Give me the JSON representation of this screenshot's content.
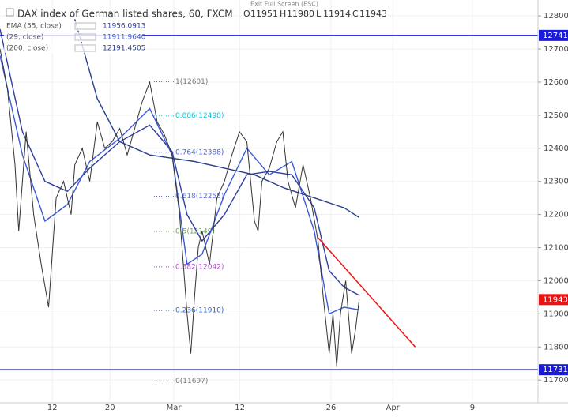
{
  "chart_data": {
    "type": "line",
    "notice": "Exit Full Screen (ESC)",
    "title": "DAX index of German listed shares, 60, FXCM",
    "ohlc": [
      {
        "label": "O",
        "value": 11951
      },
      {
        "label": "H",
        "value": 11980
      },
      {
        "label": "L",
        "value": 11914
      },
      {
        "label": "C",
        "value": 11943
      }
    ],
    "xlim": [
      0,
      51.36
    ],
    "ylim": [
      11636,
      12848
    ],
    "xticks": [
      {
        "value": 5,
        "label": "12"
      },
      {
        "value": 10.5,
        "label": "20"
      },
      {
        "value": 16.6,
        "label": "Mar"
      },
      {
        "value": 22.9,
        "label": "12"
      },
      {
        "value": 31.6,
        "label": "26"
      },
      {
        "value": 37.5,
        "label": "Apr"
      },
      {
        "value": 45.1,
        "label": "9"
      }
    ],
    "yticks": [
      11700,
      11800,
      11900,
      12000,
      12100,
      12200,
      12300,
      12400,
      12500,
      12600,
      12700,
      12800
    ],
    "price": {
      "color": "#333333",
      "x": [
        0,
        0.71,
        1.43,
        1.79,
        2.5,
        3.21,
        3.93,
        4.64,
        5.36,
        6.07,
        6.79,
        7.14,
        7.86,
        8.57,
        9.29,
        10,
        10.71,
        11.43,
        12.14,
        12.86,
        13.57,
        14.29,
        15,
        15.71,
        16.43,
        17.14,
        17.86,
        18.21,
        18.57,
        18.93,
        19.29,
        20,
        20.71,
        21.43,
        22.14,
        22.86,
        23.57,
        24.29,
        24.64,
        25,
        25.71,
        26.43,
        27,
        27.5,
        28.21,
        28.93,
        29.64,
        30.36,
        30.86,
        31.43,
        31.79,
        32.14,
        32.5,
        33,
        33.57,
        33.93,
        34.29
      ],
      "values": [
        12700,
        12580,
        12350,
        12150,
        12450,
        12200,
        12050,
        11920,
        12250,
        12300,
        12200,
        12350,
        12400,
        12300,
        12480,
        12400,
        12420,
        12460,
        12380,
        12460,
        12540,
        12600,
        12480,
        12440,
        12380,
        12200,
        11900,
        11780,
        11950,
        12100,
        12150,
        12050,
        12250,
        12300,
        12380,
        12450,
        12420,
        12180,
        12150,
        12300,
        12340,
        12420,
        12450,
        12300,
        12220,
        12350,
        12250,
        12120,
        11950,
        11780,
        11900,
        11740,
        11900,
        12000,
        11780,
        11850,
        11943
      ]
    },
    "series": [
      {
        "name": "EMA (55, close)",
        "legend_value": "11956.0913",
        "color": "#2f3f9e",
        "x": [
          0,
          2.14,
          4.29,
          6.43,
          8.57,
          11.43,
          14.29,
          16.43,
          17.86,
          19.29,
          21.43,
          23.57,
          25.71,
          27.86,
          30,
          31.43,
          32.86,
          34.29
        ],
        "values": [
          12760,
          12450,
          12300,
          12270,
          12340,
          12420,
          12470,
          12390,
          12200,
          12120,
          12200,
          12320,
          12330,
          12320,
          12220,
          12030,
          11980,
          11956
        ]
      },
      {
        "name": "(29, close)",
        "legend_value": "11911.9640",
        "color": "#3b5bd6",
        "x": [
          0,
          2.14,
          4.29,
          6.43,
          8.57,
          11.43,
          14.29,
          16.43,
          17.86,
          19.29,
          21.43,
          23.57,
          25.71,
          27.86,
          30,
          31.43,
          32.86,
          34.29
        ],
        "values": [
          12680,
          12380,
          12180,
          12230,
          12360,
          12430,
          12520,
          12380,
          12050,
          12080,
          12260,
          12400,
          12320,
          12360,
          12150,
          11900,
          11920,
          11912
        ]
      },
      {
        "name": "(200, close)",
        "legend_value": "12191.4505",
        "color": "#27408b",
        "x": [
          7.14,
          9.29,
          11.43,
          14.29,
          16.43,
          18.57,
          21.43,
          24.29,
          27.14,
          30,
          32.86,
          34.29
        ],
        "values": [
          12790,
          12550,
          12420,
          12380,
          12370,
          12360,
          12340,
          12320,
          12280,
          12250,
          12220,
          12191
        ]
      }
    ],
    "fib": [
      {
        "label": "1(12601)",
        "price": 12601,
        "color": "#777777"
      },
      {
        "label": "0.886(12498)",
        "price": 12498,
        "color": "#00c8e0"
      },
      {
        "label": "0.764(12388)",
        "price": 12388,
        "color": "#4a5fd0"
      },
      {
        "label": "0.618(12255)",
        "price": 12255,
        "color": "#5a6ee0"
      },
      {
        "label": "0.5(12149)",
        "price": 12149,
        "color": "#6aa84f"
      },
      {
        "label": "0.382(12042)",
        "price": 12042,
        "color": "#b04fc8"
      },
      {
        "label": "0.236(11910)",
        "price": 11910,
        "color": "#3060d0"
      },
      {
        "label": "0(11697)",
        "price": 11697,
        "color": "#777777"
      }
    ],
    "hlines": [
      {
        "value": 12741,
        "color": "#1a1adb"
      },
      {
        "value": 11731,
        "color": "#1a1adb"
      }
    ],
    "trendline": {
      "x": [
        30.36,
        39.64
      ],
      "y": [
        12130,
        11800
      ],
      "color": "#ee1111"
    },
    "last_color": "#ee1111"
  }
}
